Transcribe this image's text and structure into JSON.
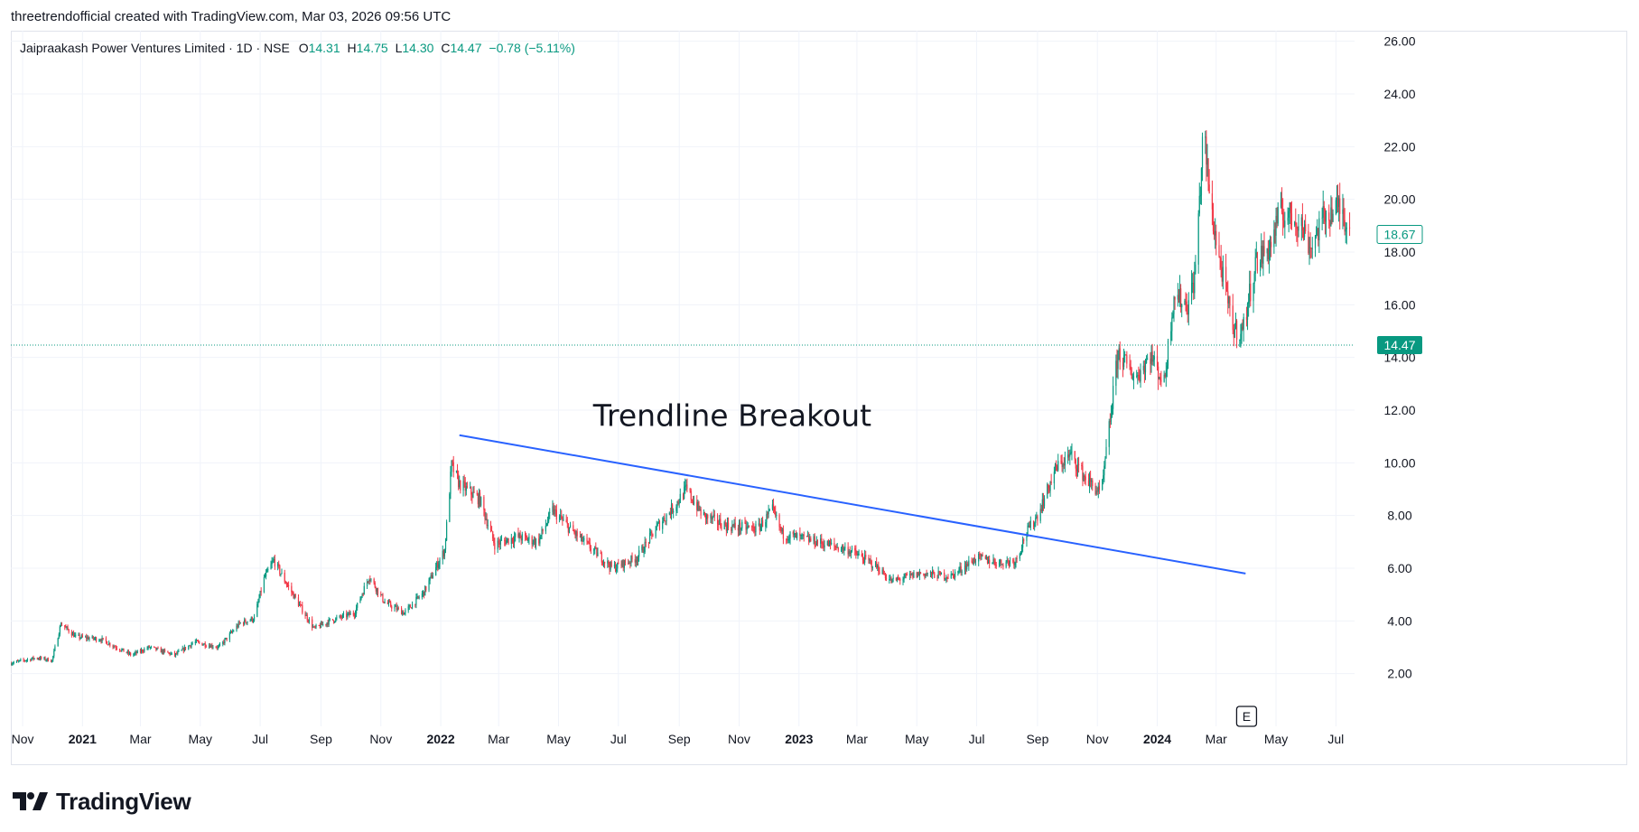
{
  "header": {
    "caption": "threetrendofficial created with TradingView.com, Mar 03, 2026 09:56 UTC"
  },
  "legend": {
    "symbol": "Jaipraakash Power Ventures Limited · 1D · NSE",
    "open_label": "O",
    "open": "14.31",
    "high_label": "H",
    "high": "14.75",
    "low_label": "L",
    "low": "14.30",
    "close_label": "C",
    "close": "14.47",
    "change": "−0.78 (−5.11%)"
  },
  "brand": {
    "name": "TradingView"
  },
  "earnings_marker": "E",
  "colors": {
    "up": "#089981",
    "down": "#f23645",
    "trendline": "#2962ff",
    "grid": "#f0f3fa"
  },
  "chart_data": {
    "type": "candlestick",
    "y_axis": {
      "min": 0,
      "max": 26.4,
      "ticks": [
        "2.00",
        "4.00",
        "6.00",
        "8.00",
        "10.00",
        "12.00",
        "14.00",
        "16.00",
        "18.00",
        "20.00",
        "22.00",
        "24.00",
        "26.00"
      ],
      "side": "right"
    },
    "x_axis": {
      "range": [
        "2020-10-20",
        "2024-07-20"
      ],
      "ticks": [
        {
          "label": "Nov",
          "date": "2020-11-01",
          "year": false
        },
        {
          "label": "2021",
          "date": "2021-01-01",
          "year": true
        },
        {
          "label": "Mar",
          "date": "2021-03-01",
          "year": false
        },
        {
          "label": "May",
          "date": "2021-05-01",
          "year": false
        },
        {
          "label": "Jul",
          "date": "2021-07-01",
          "year": false
        },
        {
          "label": "Sep",
          "date": "2021-09-01",
          "year": false
        },
        {
          "label": "Nov",
          "date": "2021-11-01",
          "year": false
        },
        {
          "label": "2022",
          "date": "2022-01-01",
          "year": true
        },
        {
          "label": "Mar",
          "date": "2022-03-01",
          "year": false
        },
        {
          "label": "May",
          "date": "2022-05-01",
          "year": false
        },
        {
          "label": "Jul",
          "date": "2022-07-01",
          "year": false
        },
        {
          "label": "Sep",
          "date": "2022-09-01",
          "year": false
        },
        {
          "label": "Nov",
          "date": "2022-11-01",
          "year": false
        },
        {
          "label": "2023",
          "date": "2023-01-01",
          "year": true
        },
        {
          "label": "Mar",
          "date": "2023-03-01",
          "year": false
        },
        {
          "label": "May",
          "date": "2023-05-01",
          "year": false
        },
        {
          "label": "Jul",
          "date": "2023-07-01",
          "year": false
        },
        {
          "label": "Sep",
          "date": "2023-09-01",
          "year": false
        },
        {
          "label": "Nov",
          "date": "2023-11-01",
          "year": false
        },
        {
          "label": "2024",
          "date": "2024-01-01",
          "year": true
        },
        {
          "label": "Mar",
          "date": "2024-03-01",
          "year": false
        },
        {
          "label": "May",
          "date": "2024-05-01",
          "year": false
        },
        {
          "label": "Jul",
          "date": "2024-07-01",
          "year": false
        }
      ]
    },
    "price_path": [
      [
        "2020-10-20",
        2.4
      ],
      [
        "2020-11-15",
        2.6
      ],
      [
        "2020-12-01",
        2.5
      ],
      [
        "2020-12-10",
        3.9
      ],
      [
        "2020-12-25",
        3.4
      ],
      [
        "2021-01-20",
        3.3
      ],
      [
        "2021-02-20",
        2.7
      ],
      [
        "2021-03-10",
        3.0
      ],
      [
        "2021-04-05",
        2.7
      ],
      [
        "2021-04-25",
        3.2
      ],
      [
        "2021-05-20",
        3.0
      ],
      [
        "2021-06-10",
        3.9
      ],
      [
        "2021-06-25",
        4.1
      ],
      [
        "2021-07-05",
        5.6
      ],
      [
        "2021-07-15",
        6.3
      ],
      [
        "2021-07-25",
        5.6
      ],
      [
        "2021-08-10",
        4.6
      ],
      [
        "2021-08-25",
        3.7
      ],
      [
        "2021-09-10",
        4.0
      ],
      [
        "2021-10-05",
        4.3
      ],
      [
        "2021-10-20",
        5.7
      ],
      [
        "2021-11-05",
        4.7
      ],
      [
        "2021-11-25",
        4.3
      ],
      [
        "2021-12-15",
        5.1
      ],
      [
        "2022-01-05",
        6.7
      ],
      [
        "2022-01-12",
        9.9
      ],
      [
        "2022-01-20",
        9.2
      ],
      [
        "2022-02-10",
        8.6
      ],
      [
        "2022-02-25",
        6.9
      ],
      [
        "2022-03-20",
        7.2
      ],
      [
        "2022-04-10",
        7.0
      ],
      [
        "2022-04-25",
        8.2
      ],
      [
        "2022-05-15",
        7.4
      ],
      [
        "2022-06-05",
        6.7
      ],
      [
        "2022-06-25",
        6.0
      ],
      [
        "2022-07-20",
        6.4
      ],
      [
        "2022-08-10",
        7.6
      ],
      [
        "2022-08-28",
        8.4
      ],
      [
        "2022-09-08",
        9.0
      ],
      [
        "2022-09-25",
        8.0
      ],
      [
        "2022-10-20",
        7.6
      ],
      [
        "2022-11-20",
        7.5
      ],
      [
        "2022-12-05",
        8.2
      ],
      [
        "2022-12-15",
        7.3
      ],
      [
        "2023-01-20",
        7.0
      ],
      [
        "2023-02-20",
        6.7
      ],
      [
        "2023-03-20",
        6.1
      ],
      [
        "2023-04-05",
        5.5
      ],
      [
        "2023-05-05",
        5.8
      ],
      [
        "2023-06-05",
        5.7
      ],
      [
        "2023-07-01",
        6.4
      ],
      [
        "2023-07-25",
        6.2
      ],
      [
        "2023-08-10",
        6.3
      ],
      [
        "2023-08-20",
        7.3
      ],
      [
        "2023-09-01",
        8.0
      ],
      [
        "2023-09-20",
        9.8
      ],
      [
        "2023-10-05",
        10.3
      ],
      [
        "2023-10-20",
        9.4
      ],
      [
        "2023-11-05",
        8.8
      ],
      [
        "2023-11-12",
        11.0
      ],
      [
        "2023-11-22",
        14.2
      ],
      [
        "2023-12-10",
        13.2
      ],
      [
        "2023-12-25",
        14.1
      ],
      [
        "2024-01-08",
        13.0
      ],
      [
        "2024-01-18",
        16.4
      ],
      [
        "2024-02-01",
        16.0
      ],
      [
        "2024-02-08",
        17.0
      ],
      [
        "2024-02-14",
        20.5
      ],
      [
        "2024-02-17",
        22.8
      ],
      [
        "2024-02-24",
        19.8
      ],
      [
        "2024-03-05",
        17.6
      ],
      [
        "2024-03-18",
        15.1
      ],
      [
        "2024-03-28",
        15.0
      ],
      [
        "2024-04-10",
        17.6
      ],
      [
        "2024-04-25",
        18.2
      ],
      [
        "2024-05-05",
        19.5
      ],
      [
        "2024-05-25",
        19.2
      ],
      [
        "2024-06-05",
        18.2
      ],
      [
        "2024-06-20",
        19.4
      ],
      [
        "2024-07-05",
        19.7
      ],
      [
        "2024-07-15",
        18.9
      ]
    ],
    "trendline": {
      "from": [
        "2022-01-20",
        11.05
      ],
      "to": [
        "2024-03-31",
        5.8
      ]
    },
    "annotations": [
      {
        "text": "Trendline Breakout",
        "x": "2022-10-25",
        "y": 11.4
      }
    ],
    "last_price": "14.47",
    "last_price_value": 14.47,
    "crosshair_price": "18.67",
    "crosshair_price_value": 18.67,
    "grid": true,
    "legend_position": "top-left"
  }
}
